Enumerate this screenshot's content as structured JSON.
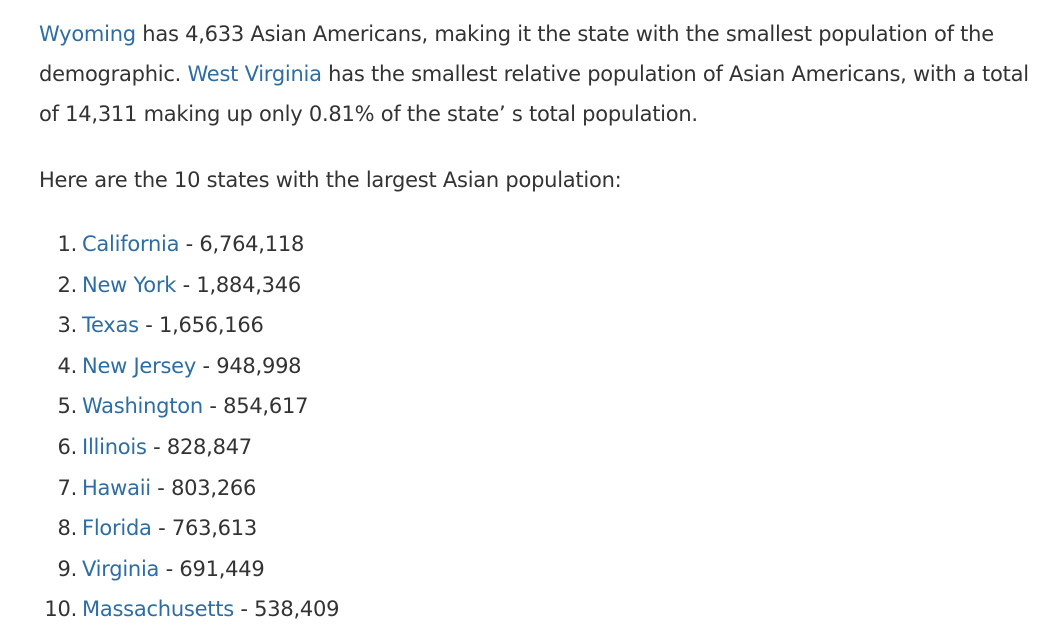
{
  "paragraph": {
    "link_wyoming": "Wyoming",
    "text_1": " has 4,633 Asian Americans, making it the state with the smallest population of the demographic. ",
    "link_west_virginia": "West Virginia",
    "text_2": " has the smallest relative population of Asian Americans, with a total of 14,311 making up only 0.81% of the state’ s total population."
  },
  "intro": "Here are the 10 states with the largest Asian population:",
  "separator": " - ",
  "states": [
    {
      "num": "1.",
      "name": "California",
      "value": "6,764,118"
    },
    {
      "num": "2.",
      "name": "New York",
      "value": "1,884,346"
    },
    {
      "num": "3.",
      "name": "Texas",
      "value": "1,656,166"
    },
    {
      "num": "4.",
      "name": "New Jersey",
      "value": "948,998"
    },
    {
      "num": "5.",
      "name": "Washington",
      "value": "854,617"
    },
    {
      "num": "6.",
      "name": "Illinois",
      "value": "828,847"
    },
    {
      "num": "7.",
      "name": "Hawaii",
      "value": "803,266"
    },
    {
      "num": "8.",
      "name": "Florida",
      "value": "763,613"
    },
    {
      "num": "9.",
      "name": "Virginia",
      "value": "691,449"
    },
    {
      "num": "10.",
      "name": "Massachusetts",
      "value": "538,409"
    }
  ],
  "colors": {
    "link": "#2e6da4",
    "text": "#333333",
    "background": "#ffffff"
  }
}
